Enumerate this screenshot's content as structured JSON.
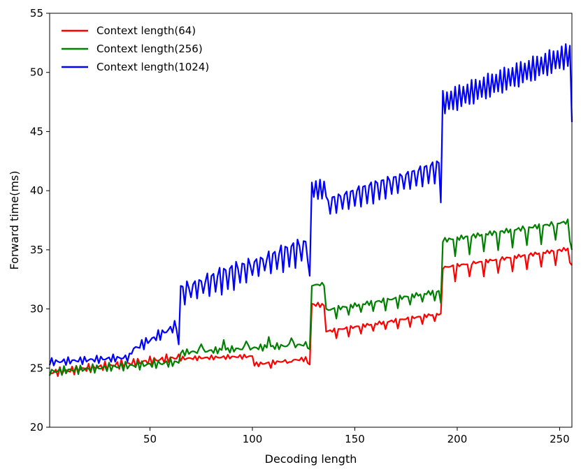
{
  "chart_data": {
    "type": "line",
    "title": "",
    "xlabel": "Decoding length",
    "ylabel": "Forward time(ms)",
    "xlim": [
      1,
      256
    ],
    "ylim": [
      20,
      55
    ],
    "xticks": [
      50,
      100,
      150,
      200,
      250
    ],
    "yticks": [
      20,
      25,
      30,
      35,
      40,
      45,
      50,
      55
    ],
    "legend": "top-left",
    "grid": false,
    "series": [
      {
        "name": "Context length(64)",
        "color": "#ff0000",
        "segments": [
          {
            "start": 1,
            "end": 64,
            "base_start": 24.6,
            "base_end": 25.9,
            "jitter": 0.4,
            "dip_every": 0,
            "dip": 0
          },
          {
            "start": 65,
            "end": 100,
            "base_start": 25.8,
            "base_end": 26.0,
            "jitter": 0.2,
            "dip_every": 0,
            "dip": 0
          },
          {
            "start": 101,
            "end": 127,
            "base_start": 25.3,
            "base_end": 25.8,
            "jitter": 0.2,
            "dip_every": 9,
            "dip": 0.3
          },
          {
            "start": 128,
            "end": 128,
            "base_start": 25.3,
            "base_end": 25.3,
            "jitter": 0,
            "dip_every": 0,
            "dip": 0
          },
          {
            "start": 129,
            "end": 135,
            "base_start": 30.4,
            "base_end": 30.3,
            "jitter": 0.2,
            "dip_every": 0,
            "dip": 0
          },
          {
            "start": 136,
            "end": 191,
            "base_start": 28.1,
            "base_end": 29.6,
            "jitter": 0.15,
            "dip_every": 6,
            "dip": 0.6
          },
          {
            "start": 192,
            "end": 192,
            "base_start": 29.6,
            "base_end": 29.6,
            "jitter": 0,
            "dip_every": 0,
            "dip": 0
          },
          {
            "start": 193,
            "end": 255,
            "base_start": 33.5,
            "base_end": 35.1,
            "jitter": 0.15,
            "dip_every": 7,
            "dip": 1.2
          },
          {
            "start": 256,
            "end": 256,
            "base_start": 33.7,
            "base_end": 33.7,
            "jitter": 0,
            "dip_every": 0,
            "dip": 0
          }
        ]
      },
      {
        "name": "Context length(256)",
        "color": "#008000",
        "segments": [
          {
            "start": 1,
            "end": 64,
            "base_start": 24.7,
            "base_end": 25.5,
            "jitter": 0.4,
            "dip_every": 0,
            "dip": 0
          },
          {
            "start": 65,
            "end": 127,
            "base_start": 26.3,
            "base_end": 27.0,
            "jitter": 0.3,
            "dip_every": 11,
            "dip": -0.9
          },
          {
            "start": 128,
            "end": 128,
            "base_start": 26.6,
            "base_end": 26.6,
            "jitter": 0,
            "dip_every": 0,
            "dip": 0
          },
          {
            "start": 129,
            "end": 135,
            "base_start": 32.0,
            "base_end": 32.1,
            "jitter": 0.15,
            "dip_every": 0,
            "dip": 0
          },
          {
            "start": 136,
            "end": 191,
            "base_start": 29.9,
            "base_end": 31.5,
            "jitter": 0.2,
            "dip_every": 6,
            "dip": 0.7
          },
          {
            "start": 192,
            "end": 192,
            "base_start": 30.5,
            "base_end": 30.5,
            "jitter": 0,
            "dip_every": 0,
            "dip": 0
          },
          {
            "start": 193,
            "end": 255,
            "base_start": 35.8,
            "base_end": 37.4,
            "jitter": 0.2,
            "dip_every": 7,
            "dip": 1.5
          },
          {
            "start": 256,
            "end": 256,
            "base_start": 35.0,
            "base_end": 35.0,
            "jitter": 0,
            "dip_every": 0,
            "dip": 0
          }
        ]
      },
      {
        "name": "Context length(1024)",
        "color": "#0000ff",
        "segments": [
          {
            "start": 1,
            "end": 40,
            "base_start": 25.5,
            "base_end": 25.9,
            "jitter": 0.35,
            "dip_every": 0,
            "dip": 0
          },
          {
            "start": 41,
            "end": 63,
            "base_start": 26.5,
            "base_end": 28.6,
            "jitter": 0.5,
            "dip_every": 0,
            "dip": 0
          },
          {
            "start": 64,
            "end": 64,
            "base_start": 27.0,
            "base_end": 27.0,
            "jitter": 0,
            "dip_every": 0,
            "dip": 0
          },
          {
            "start": 65,
            "end": 127,
            "base_start": 31.9,
            "base_end": 35.8,
            "jitter": 0.4,
            "dip_every": 3,
            "dip": 1.6
          },
          {
            "start": 128,
            "end": 128,
            "base_start": 32.8,
            "base_end": 32.8,
            "jitter": 0,
            "dip_every": 0,
            "dip": 0
          },
          {
            "start": 129,
            "end": 135,
            "base_start": 40.9,
            "base_end": 40.9,
            "jitter": 0.2,
            "dip_every": 2,
            "dip": 1.6
          },
          {
            "start": 136,
            "end": 191,
            "base_start": 39.3,
            "base_end": 42.4,
            "jitter": 0.2,
            "dip_every": 3,
            "dip": 1.5
          },
          {
            "start": 192,
            "end": 192,
            "base_start": 39.0,
            "base_end": 39.0,
            "jitter": 0,
            "dip_every": 0,
            "dip": 0
          },
          {
            "start": 193,
            "end": 255,
            "base_start": 48.4,
            "base_end": 52.5,
            "jitter": 0.3,
            "dip_every": 2,
            "dip": 2.0
          },
          {
            "start": 256,
            "end": 256,
            "base_start": 45.8,
            "base_end": 45.8,
            "jitter": 0,
            "dip_every": 0,
            "dip": 0
          }
        ]
      }
    ]
  }
}
